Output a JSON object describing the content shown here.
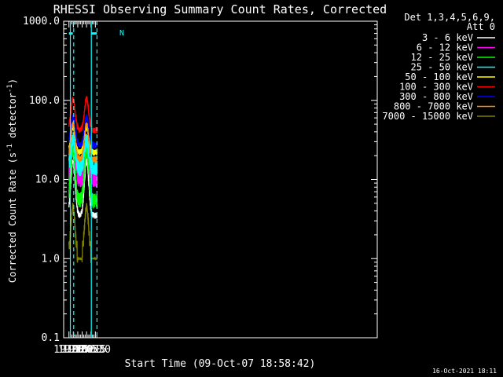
{
  "chart_data": {
    "type": "line",
    "title": "RHESSI Observing Summary Count Rates, Corrected",
    "xlabel": "Start Time (09-Oct-07 18:58:42)",
    "ylabel_main": "Corrected Count Rate (s",
    "ylabel_sup1": "-1",
    "ylabel_mid": " detector",
    "ylabel_sup2": "-1",
    "ylabel_end": ")",
    "y_scale": "log",
    "ylim": [
      0.1,
      1000
    ],
    "xlim_minutes": [
      18.7,
      36.5
    ],
    "x_ticks": [
      "19:00",
      "19:15",
      "19:30",
      "19:45",
      "20:00",
      "20:15",
      "20:30"
    ],
    "y_ticks": [
      "0.1",
      "1.0",
      "10.0",
      "100.0",
      "1000.0"
    ],
    "legend_header": [
      "Det 1,3,4,5,6,9,",
      "Att 0"
    ],
    "legend_position": "right",
    "timestamp": "16-Oct-2021 18:11",
    "flag_label": "N",
    "night_markers": [
      {
        "x": 19.08,
        "style": "solid"
      },
      {
        "x": 19.27,
        "style": "dashed"
      },
      {
        "x": 20.27,
        "style": "solid"
      },
      {
        "x": 20.59,
        "style": "dashed"
      }
    ],
    "flag_bars": [
      {
        "from": 19.0,
        "to": 19.22,
        "y": 700
      },
      {
        "from": 20.27,
        "to": 20.58,
        "y": 700
      }
    ],
    "series": [
      {
        "name": "3 - 6 keV",
        "color": "#ffffff",
        "base": 3.5,
        "peak": 17
      },
      {
        "name": "6 - 12 keV",
        "color": "#ff00ff",
        "base": 10,
        "peak": 28
      },
      {
        "name": "12 - 25 keV",
        "color": "#00ff00",
        "base": 5.5,
        "peak": 24
      },
      {
        "name": "25 - 50 keV",
        "color": "#00ffff",
        "base": 14,
        "peak": 33
      },
      {
        "name": "50 - 100 keV",
        "color": "#ffff00",
        "base": 22,
        "peak": 46
      },
      {
        "name": "100 - 300 keV",
        "color": "#ff0000",
        "base": 42,
        "peak": 105
      },
      {
        "name": "300 - 800 keV",
        "color": "#0000ff",
        "base": 27,
        "peak": 62
      },
      {
        "name": "800 - 7000 keV",
        "color": "#ff8c00",
        "base": 18,
        "peak": 50
      },
      {
        "name": "7000 - 15000 keV",
        "color": "#808000",
        "base": 1.0,
        "peak": 4.5
      }
    ]
  }
}
